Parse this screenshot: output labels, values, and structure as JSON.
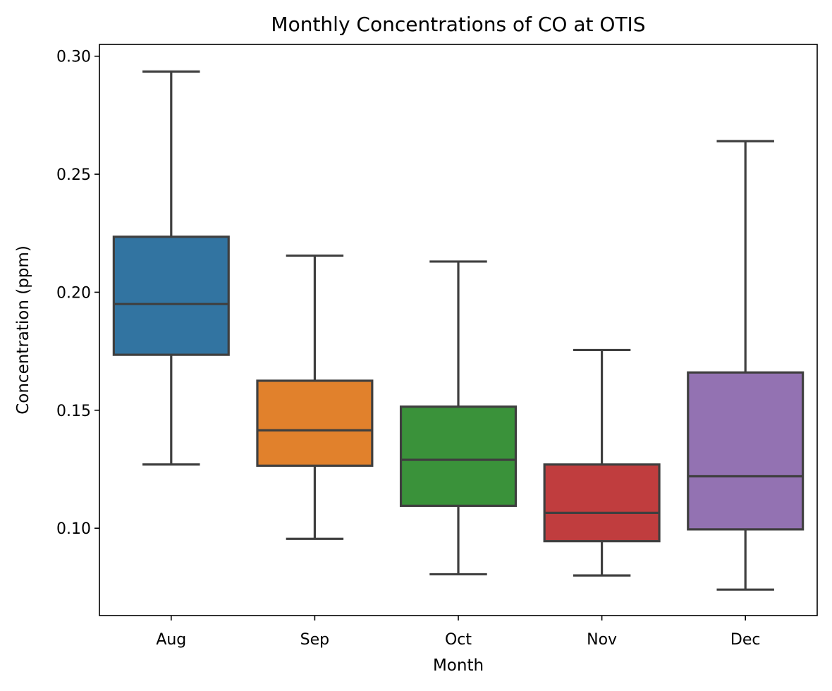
{
  "chart_data": {
    "type": "box",
    "title": "Monthly Concentrations of CO at OTIS",
    "xlabel": "Month",
    "ylabel": "Concentration (ppm)",
    "ylim": [
      0.063,
      0.305
    ],
    "yticks": [
      0.1,
      0.15,
      0.2,
      0.25,
      0.3
    ],
    "ytick_labels": [
      "0.10",
      "0.15",
      "0.20",
      "0.25",
      "0.30"
    ],
    "grid": false,
    "categories": [
      "Aug",
      "Sep",
      "Oct",
      "Nov",
      "Dec"
    ],
    "boxes": [
      {
        "category": "Aug",
        "whisker_low": 0.127,
        "q1": 0.1735,
        "median": 0.195,
        "q3": 0.2235,
        "whisker_high": 0.2935,
        "color": "#3274a1"
      },
      {
        "category": "Sep",
        "whisker_low": 0.0955,
        "q1": 0.1265,
        "median": 0.1415,
        "q3": 0.1625,
        "whisker_high": 0.2155,
        "color": "#e1812c"
      },
      {
        "category": "Oct",
        "whisker_low": 0.0805,
        "q1": 0.1095,
        "median": 0.129,
        "q3": 0.1515,
        "whisker_high": 0.213,
        "color": "#3a923a"
      },
      {
        "category": "Nov",
        "whisker_low": 0.08,
        "q1": 0.0945,
        "median": 0.1065,
        "q3": 0.127,
        "whisker_high": 0.1755,
        "color": "#c03d3e"
      },
      {
        "category": "Dec",
        "whisker_low": 0.074,
        "q1": 0.0995,
        "median": 0.122,
        "q3": 0.166,
        "whisker_high": 0.264,
        "color": "#9372b2"
      }
    ],
    "line_color": "#3f3f3f"
  }
}
